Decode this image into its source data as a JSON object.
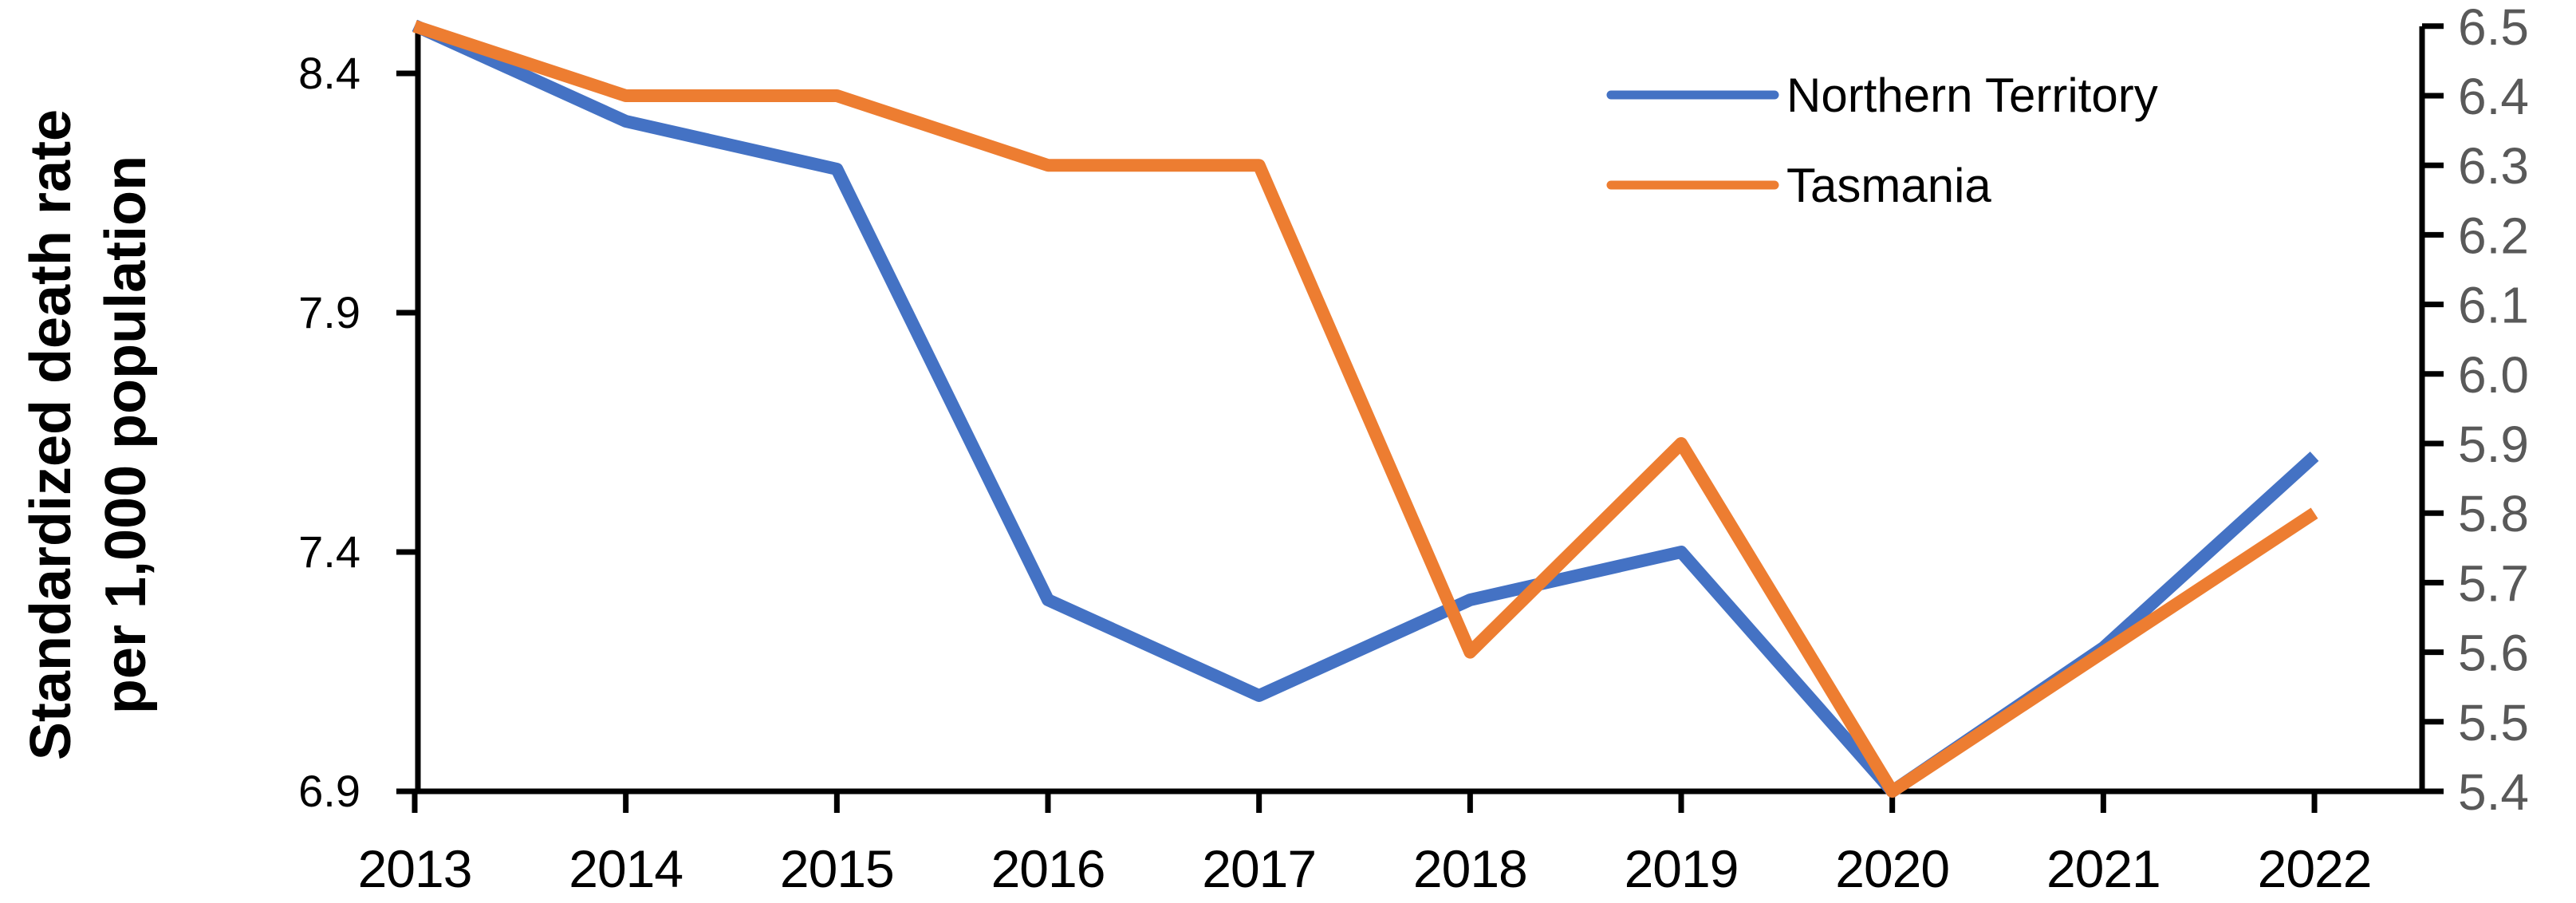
{
  "chart_data": {
    "type": "line",
    "title": "",
    "categories": [
      "2013",
      "2014",
      "2015",
      "2016",
      "2017",
      "2018",
      "2019",
      "2020",
      "2021",
      "2022"
    ],
    "series": [
      {
        "name": "Northern Territory",
        "axis": "left",
        "color": "#4472C4",
        "values": [
          8.5,
          8.3,
          8.2,
          7.3,
          7.1,
          7.3,
          7.4,
          6.9,
          7.2,
          7.6
        ]
      },
      {
        "name": "Tasmania",
        "axis": "right",
        "color": "#ED7D31",
        "values": [
          6.5,
          6.4,
          6.4,
          6.3,
          6.3,
          5.6,
          5.9,
          5.4,
          5.6,
          5.8
        ]
      }
    ],
    "left_axis": {
      "title_lines": [
        "Standardized death rate",
        "per 1,000 population"
      ],
      "tick_labels": [
        "8.4",
        "7.9",
        "7.4",
        "6.9"
      ],
      "range": [
        6.9,
        8.5
      ],
      "tick_label_color": "#000000",
      "title_color": "#000000"
    },
    "right_axis": {
      "tick_labels": [
        "6.5",
        "6.4",
        "6.3",
        "6.2",
        "6.1",
        "6.0",
        "5.9",
        "5.8",
        "5.7",
        "5.6",
        "5.5",
        "5.4"
      ],
      "range": [
        5.4,
        6.5
      ],
      "tick_label_color": "#595959"
    },
    "x_axis": {
      "tick_labels": [
        "2013",
        "2014",
        "2015",
        "2016",
        "2017",
        "2018",
        "2019",
        "2020",
        "2021",
        "2022"
      ],
      "tick_label_color": "#000000"
    },
    "legend": {
      "position": "top-right",
      "entries": [
        {
          "label": "Northern Territory",
          "color": "#4472C4"
        },
        {
          "label": "Tasmania",
          "color": "#ED7D31"
        }
      ]
    },
    "grid": false,
    "axis_line_color": "#000000"
  }
}
